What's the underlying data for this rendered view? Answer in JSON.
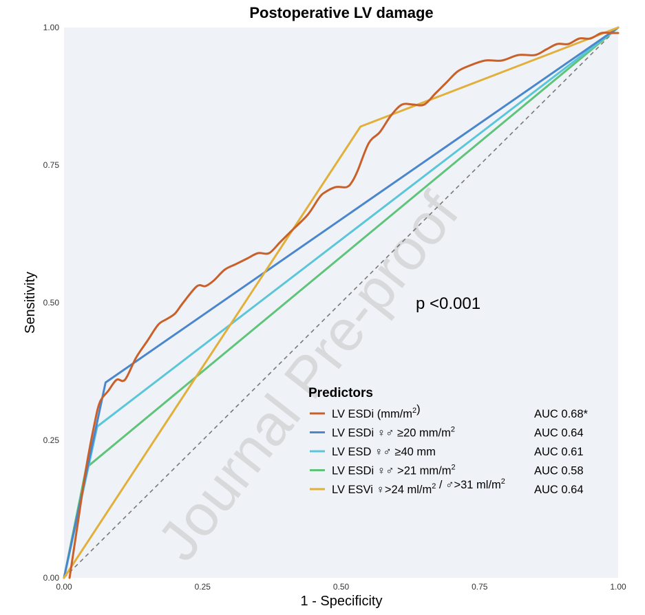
{
  "chart_data": {
    "type": "line",
    "title": "Postoperative LV damage",
    "xlabel": "1 - Specificity",
    "ylabel": "Sensitivity",
    "xlim": [
      0,
      1
    ],
    "ylim": [
      0,
      1
    ],
    "x_ticks": [
      "0.00",
      "0.25",
      "0.50",
      "0.75",
      "1.00"
    ],
    "y_ticks": [
      "0.00",
      "0.25",
      "0.50",
      "0.75",
      "1.00"
    ],
    "grid": false,
    "background": "#eff2f6",
    "annotation": "p <0.001",
    "watermark": "Journal Pre-proof",
    "reference_line": {
      "x": [
        0,
        1
      ],
      "y": [
        0,
        1
      ],
      "color": "#777777",
      "style": "dashed"
    },
    "legend": {
      "title": "Predictors",
      "position": "bottom-right"
    },
    "series": [
      {
        "name": "LV ESDi (mm/m2)",
        "label_main": "LV ESDi (mm/m",
        "label_sup": "2",
        "label_tail": ")",
        "auc": "AUC 0.68*",
        "color": "#c9602a",
        "smooth": true,
        "x": [
          0.01,
          0.025,
          0.04,
          0.055,
          0.065,
          0.08,
          0.095,
          0.11,
          0.13,
          0.15,
          0.17,
          0.185,
          0.2,
          0.215,
          0.24,
          0.255,
          0.27,
          0.29,
          0.31,
          0.33,
          0.35,
          0.37,
          0.39,
          0.41,
          0.44,
          0.46,
          0.47,
          0.49,
          0.51,
          0.52,
          0.53,
          0.55,
          0.57,
          0.59,
          0.61,
          0.63,
          0.65,
          0.67,
          0.69,
          0.71,
          0.73,
          0.76,
          0.79,
          0.82,
          0.85,
          0.87,
          0.89,
          0.91,
          0.93,
          0.95,
          0.97,
          0.99,
          1.0
        ],
        "y": [
          0.0,
          0.1,
          0.2,
          0.28,
          0.32,
          0.34,
          0.36,
          0.36,
          0.4,
          0.43,
          0.46,
          0.47,
          0.48,
          0.5,
          0.53,
          0.53,
          0.54,
          0.56,
          0.57,
          0.58,
          0.59,
          0.59,
          0.61,
          0.63,
          0.66,
          0.69,
          0.7,
          0.71,
          0.71,
          0.72,
          0.74,
          0.79,
          0.81,
          0.84,
          0.86,
          0.86,
          0.86,
          0.88,
          0.9,
          0.92,
          0.93,
          0.94,
          0.94,
          0.95,
          0.95,
          0.96,
          0.97,
          0.97,
          0.98,
          0.98,
          0.99,
          0.99,
          0.99
        ]
      },
      {
        "name": "LV ESDi ♀♂ ≥20 mm/m2",
        "label_main": "LV ESDi ♀♂ ≥20 mm/m",
        "label_sup": "2",
        "label_tail": "",
        "auc": "AUC 0.64",
        "color": "#4a86cc",
        "smooth": false,
        "x": [
          0.0,
          0.075,
          1.0
        ],
        "y": [
          0.0,
          0.355,
          1.0
        ]
      },
      {
        "name": "LV ESD ♀♂ ≥40 mm",
        "label_main": "LV ESD ♀♂ ≥40 mm",
        "label_sup": "",
        "label_tail": "",
        "auc": "AUC 0.61",
        "color": "#5bc6da",
        "smooth": false,
        "x": [
          0.0,
          0.06,
          1.0
        ],
        "y": [
          0.0,
          0.275,
          1.0
        ]
      },
      {
        "name": "LV ESDi ♀♂ >21 mm/m2",
        "label_main": "LV ESDi ♀♂ >21 mm/m",
        "label_sup": "2",
        "label_tail": "",
        "auc": "AUC 0.58",
        "color": "#5ec47a",
        "smooth": false,
        "x": [
          0.0,
          0.04,
          1.0
        ],
        "y": [
          0.0,
          0.2,
          1.0
        ]
      },
      {
        "name": "LV ESVi ♀>24 ml/m2 / ♂>31 ml/m2",
        "label_main": "LV ESVi ♀>24 ml/m",
        "label_sup": "2",
        "label_tail": " / ♂>31 ml/m",
        "label_sup2": "2",
        "auc": "AUC 0.64",
        "color": "#e2b03a",
        "smooth": false,
        "x": [
          0.0,
          0.535,
          1.0
        ],
        "y": [
          0.0,
          0.82,
          1.0
        ]
      }
    ]
  }
}
